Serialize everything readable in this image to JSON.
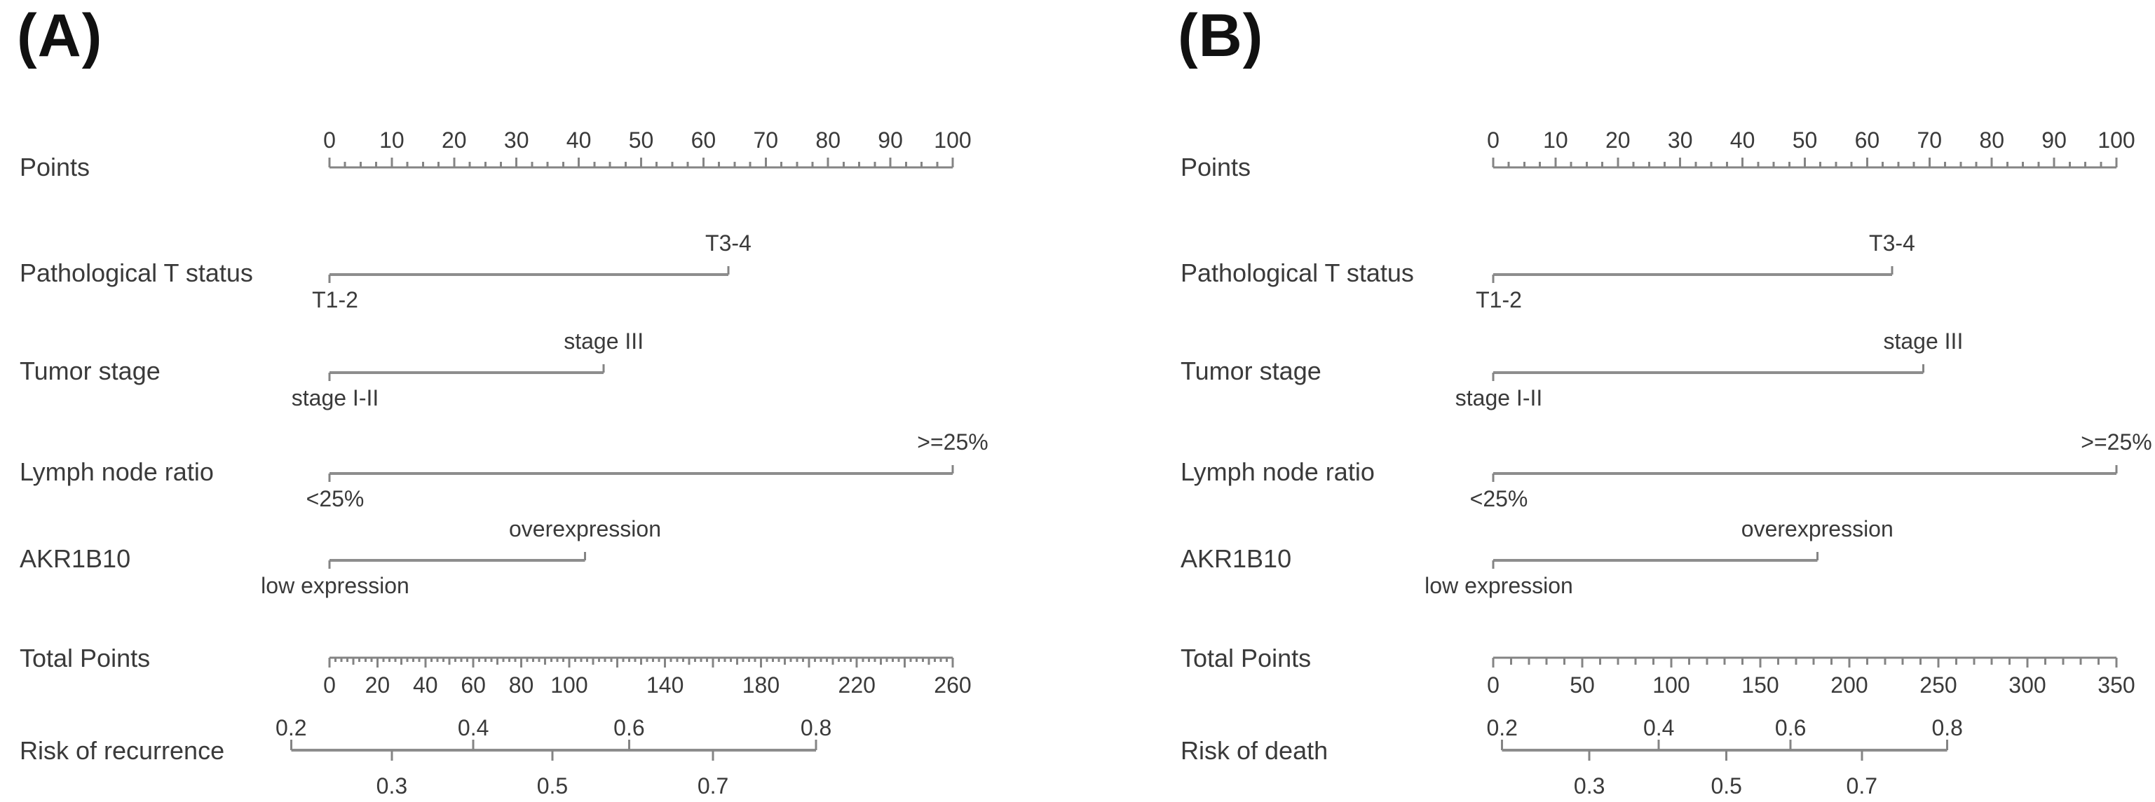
{
  "chart_data": [
    {
      "type": "nomogram",
      "panel_label": "(A)",
      "points_axis": {
        "label": "Points",
        "min": 0,
        "max": 100,
        "minor_step": 2.5,
        "major_step": 10,
        "ticks": [
          {
            "label": "0",
            "value": 0
          },
          {
            "label": "10",
            "value": 10
          },
          {
            "label": "20",
            "value": 20
          },
          {
            "label": "30",
            "value": 30
          },
          {
            "label": "40",
            "value": 40
          },
          {
            "label": "50",
            "value": 50
          },
          {
            "label": "60",
            "value": 60
          },
          {
            "label": "70",
            "value": 70
          },
          {
            "label": "80",
            "value": 80
          },
          {
            "label": "90",
            "value": 90
          },
          {
            "label": "100",
            "value": 100
          }
        ]
      },
      "variables": [
        {
          "name": "Pathological T status",
          "low": {
            "label": "T1-2",
            "points": 0
          },
          "high": {
            "label": "T3-4",
            "points": 64
          }
        },
        {
          "name": "Tumor stage",
          "low": {
            "label": "stage I-II",
            "points": 0
          },
          "high": {
            "label": "stage III",
            "points": 44
          }
        },
        {
          "name": "Lymph node ratio",
          "low": {
            "label": "<25%",
            "points": 0
          },
          "high": {
            "label": ">=25%",
            "points": 100
          }
        },
        {
          "name": "AKR1B10",
          "low": {
            "label": "low expression",
            "points": 0
          },
          "high": {
            "label": "overexpression",
            "points": 41
          }
        }
      ],
      "total_points_axis": {
        "label": "Total Points",
        "min": 0,
        "max": 260,
        "minor_step": 2.5,
        "medium_step": 10,
        "major_step": 20,
        "ticks": [
          {
            "label": "0",
            "value": 0
          },
          {
            "label": "20",
            "value": 20
          },
          {
            "label": "40",
            "value": 40
          },
          {
            "label": "60",
            "value": 60
          },
          {
            "label": "80",
            "value": 80
          },
          {
            "label": "100",
            "value": 100
          },
          {
            "label": "140",
            "value": 140
          },
          {
            "label": "180",
            "value": 180
          },
          {
            "label": "220",
            "value": 220
          },
          {
            "label": "260",
            "value": 260
          }
        ]
      },
      "risk_axis": {
        "label": "Risk of recurrence",
        "upper_ticks": [
          {
            "label": "0.2",
            "total_points": -16
          },
          {
            "label": "0.4",
            "total_points": 60
          },
          {
            "label": "0.6",
            "total_points": 125
          },
          {
            "label": "0.8",
            "total_points": 203
          }
        ],
        "lower_ticks": [
          {
            "label": "0.3",
            "total_points": 26
          },
          {
            "label": "0.5",
            "total_points": 93
          },
          {
            "label": "0.7",
            "total_points": 160
          }
        ]
      }
    },
    {
      "type": "nomogram",
      "panel_label": "(B)",
      "points_axis": {
        "label": "Points",
        "min": 0,
        "max": 100,
        "minor_step": 2.5,
        "major_step": 10,
        "ticks": [
          {
            "label": "0",
            "value": 0
          },
          {
            "label": "10",
            "value": 10
          },
          {
            "label": "20",
            "value": 20
          },
          {
            "label": "30",
            "value": 30
          },
          {
            "label": "40",
            "value": 40
          },
          {
            "label": "50",
            "value": 50
          },
          {
            "label": "60",
            "value": 60
          },
          {
            "label": "70",
            "value": 70
          },
          {
            "label": "80",
            "value": 80
          },
          {
            "label": "90",
            "value": 90
          },
          {
            "label": "100",
            "value": 100
          }
        ]
      },
      "variables": [
        {
          "name": "Pathological T status",
          "low": {
            "label": "T1-2",
            "points": 0
          },
          "high": {
            "label": "T3-4",
            "points": 64
          }
        },
        {
          "name": "Tumor stage",
          "low": {
            "label": "stage I-II",
            "points": 0
          },
          "high": {
            "label": "stage III",
            "points": 69
          }
        },
        {
          "name": "Lymph node ratio",
          "low": {
            "label": "<25%",
            "points": 0
          },
          "high": {
            "label": ">=25%",
            "points": 100
          }
        },
        {
          "name": "AKR1B10",
          "low": {
            "label": "low expression",
            "points": 0
          },
          "high": {
            "label": "overexpression",
            "points": 52
          }
        }
      ],
      "total_points_axis": {
        "label": "Total Points",
        "min": 0,
        "max": 350,
        "minor_step": 10,
        "medium_step": 10,
        "major_step": 50,
        "ticks": [
          {
            "label": "0",
            "value": 0
          },
          {
            "label": "50",
            "value": 50
          },
          {
            "label": "100",
            "value": 100
          },
          {
            "label": "150",
            "value": 150
          },
          {
            "label": "200",
            "value": 200
          },
          {
            "label": "250",
            "value": 250
          },
          {
            "label": "300",
            "value": 300
          },
          {
            "label": "350",
            "value": 350
          }
        ]
      },
      "risk_axis": {
        "label": "Risk of death",
        "upper_ticks": [
          {
            "label": "0.2",
            "total_points": 5
          },
          {
            "label": "0.4",
            "total_points": 93
          },
          {
            "label": "0.6",
            "total_points": 167
          },
          {
            "label": "0.8",
            "total_points": 255
          }
        ],
        "lower_ticks": [
          {
            "label": "0.3",
            "total_points": 54
          },
          {
            "label": "0.5",
            "total_points": 131
          },
          {
            "label": "0.7",
            "total_points": 207
          }
        ]
      }
    }
  ],
  "style": {
    "line_color": "#848484",
    "bar_color": "#8d8d8d",
    "text_color": "#3a3a3a"
  }
}
